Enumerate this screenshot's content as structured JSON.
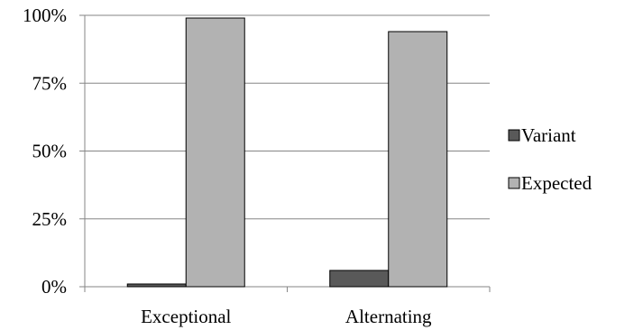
{
  "chart_data": {
    "type": "bar",
    "categories": [
      "Exceptional",
      "Alternating"
    ],
    "series": [
      {
        "name": "Variant",
        "values": [
          1,
          6
        ],
        "color": "#595959"
      },
      {
        "name": "Expected",
        "values": [
          99,
          94
        ],
        "color": "#b2b2b2"
      }
    ],
    "y_ticks": [
      "0%",
      "25%",
      "50%",
      "75%",
      "100%"
    ],
    "ylim": [
      0,
      100
    ],
    "grid": true,
    "legend_position": "right"
  }
}
